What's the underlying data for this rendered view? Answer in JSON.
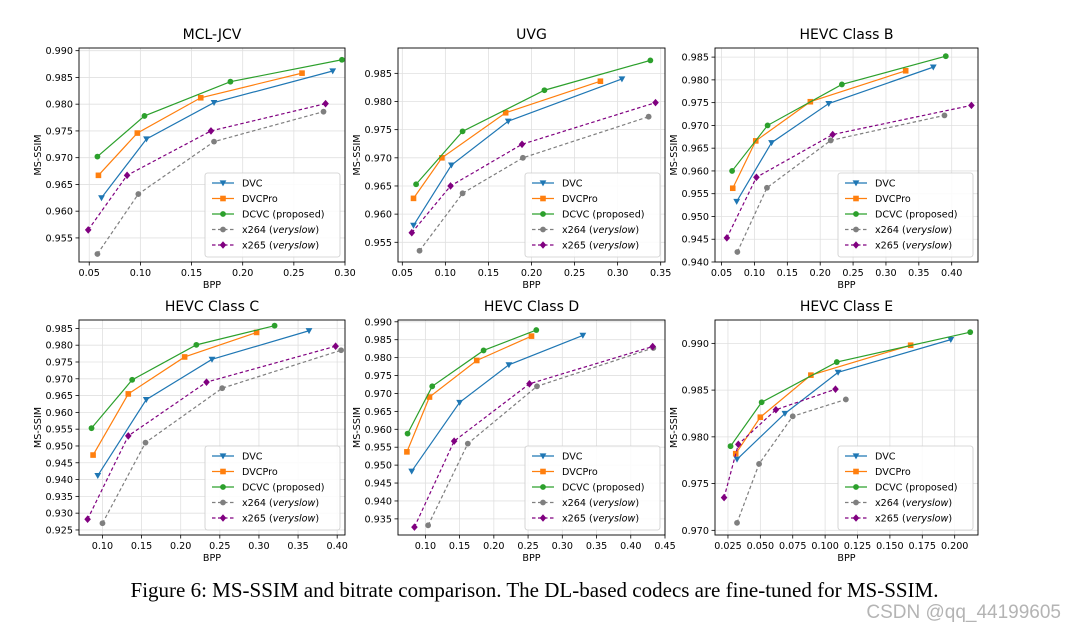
{
  "figure": {
    "caption": "Figure 6: MS-SSIM and bitrate comparison. The DL-based codecs are fine-tuned for MS-SSIM.",
    "watermark": "CSDN @qq_44199605"
  },
  "legend": [
    {
      "key": "dvc",
      "label": "DVC",
      "color": "#1f77b4",
      "marker": "triangle-down",
      "dashed": false
    },
    {
      "key": "dvcpro",
      "label": "DVCPro",
      "color": "#ff7f0e",
      "marker": "square",
      "dashed": false
    },
    {
      "key": "dcvc",
      "label": "DCVC (proposed)",
      "color": "#2ca02c",
      "marker": "circle",
      "dashed": false
    },
    {
      "key": "x264",
      "label": "x264",
      "label_suffix": "veryslow",
      "color": "#7f7f7f",
      "marker": "circle",
      "dashed": true
    },
    {
      "key": "x265",
      "label": "x265",
      "label_suffix": "veryslow",
      "color": "#800080",
      "marker": "diamond",
      "dashed": true
    }
  ],
  "chart_data": [
    {
      "type": "line",
      "title": "MCL-JCV",
      "xlabel": "BPP",
      "ylabel": "MS-SSIM",
      "xlim": [
        0.04,
        0.3
      ],
      "ylim": [
        0.9505,
        0.9905
      ],
      "xticks": [
        0.05,
        0.1,
        0.15,
        0.2,
        0.25,
        0.3
      ],
      "xtick_labels": [
        "0.05",
        "0.10",
        "0.15",
        "0.20",
        "0.25",
        "0.30"
      ],
      "yticks": [
        0.955,
        0.96,
        0.965,
        0.97,
        0.975,
        0.98,
        0.985,
        0.99
      ],
      "ytick_labels": [
        "0.955",
        "0.960",
        "0.965",
        "0.970",
        "0.975",
        "0.980",
        "0.985",
        "0.990"
      ],
      "grid": true,
      "legend_position": "bottom-right",
      "series": [
        {
          "name": "DVC",
          "x": [
            0.062,
            0.106,
            0.172,
            0.288
          ],
          "y": [
            0.9625,
            0.9735,
            0.9803,
            0.9862
          ]
        },
        {
          "name": "DVCPro",
          "x": [
            0.059,
            0.097,
            0.159,
            0.258
          ],
          "y": [
            0.9667,
            0.9746,
            0.9812,
            0.9858
          ]
        },
        {
          "name": "DCVC (proposed)",
          "x": [
            0.058,
            0.104,
            0.188,
            0.297
          ],
          "y": [
            0.9702,
            0.9778,
            0.9842,
            0.9883
          ]
        },
        {
          "name": "x264 (veryslow)",
          "x": [
            0.058,
            0.098,
            0.172,
            0.279
          ],
          "y": [
            0.952,
            0.9632,
            0.973,
            0.9786
          ]
        },
        {
          "name": "x265 (veryslow)",
          "x": [
            0.049,
            0.087,
            0.169,
            0.281
          ],
          "y": [
            0.9565,
            0.9667,
            0.975,
            0.9801
          ]
        }
      ]
    },
    {
      "type": "line",
      "title": "UVG",
      "xlabel": "BPP",
      "ylabel": "MS-SSIM",
      "xlim": [
        0.045,
        0.355
      ],
      "ylim": [
        0.9515,
        0.9895
      ],
      "xticks": [
        0.05,
        0.1,
        0.15,
        0.2,
        0.25,
        0.3,
        0.35
      ],
      "xtick_labels": [
        "0.05",
        "0.10",
        "0.15",
        "0.20",
        "0.25",
        "0.30",
        "0.35"
      ],
      "yticks": [
        0.955,
        0.96,
        0.965,
        0.97,
        0.975,
        0.98,
        0.985
      ],
      "ytick_labels": [
        "0.955",
        "0.960",
        "0.965",
        "0.970",
        "0.975",
        "0.980",
        "0.985"
      ],
      "grid": true,
      "legend_position": "bottom-right",
      "series": [
        {
          "name": "DVC",
          "x": [
            0.063,
            0.107,
            0.173,
            0.305
          ],
          "y": [
            0.958,
            0.9687,
            0.9765,
            0.984
          ]
        },
        {
          "name": "DVCPro",
          "x": [
            0.063,
            0.096,
            0.17,
            0.28
          ],
          "y": [
            0.9628,
            0.97,
            0.978,
            0.9836
          ]
        },
        {
          "name": "DCVC (proposed)",
          "x": [
            0.066,
            0.12,
            0.215,
            0.338
          ],
          "y": [
            0.9653,
            0.9747,
            0.982,
            0.9873
          ]
        },
        {
          "name": "x264 (veryslow)",
          "x": [
            0.07,
            0.12,
            0.19,
            0.336
          ],
          "y": [
            0.9535,
            0.9637,
            0.97,
            0.9773
          ]
        },
        {
          "name": "x265 (veryslow)",
          "x": [
            0.061,
            0.106,
            0.189,
            0.344
          ],
          "y": [
            0.9567,
            0.965,
            0.9724,
            0.9798
          ]
        }
      ]
    },
    {
      "type": "line",
      "title": "HEVC Class B",
      "xlabel": "BPP",
      "ylabel": "MS-SSIM",
      "xlim": [
        0.04,
        0.44
      ],
      "ylim": [
        0.94,
        0.987
      ],
      "xticks": [
        0.05,
        0.1,
        0.15,
        0.2,
        0.25,
        0.3,
        0.35,
        0.4
      ],
      "xtick_labels": [
        "0.05",
        "0.10",
        "0.15",
        "0.20",
        "0.25",
        "0.30",
        "0.35",
        "0.40"
      ],
      "yticks": [
        0.94,
        0.945,
        0.95,
        0.955,
        0.96,
        0.965,
        0.97,
        0.975,
        0.98,
        0.985
      ],
      "ytick_labels": [
        "0.940",
        "0.945",
        "0.950",
        "0.955",
        "0.960",
        "0.965",
        "0.970",
        "0.975",
        "0.980",
        "0.985"
      ],
      "grid": true,
      "legend_position": "bottom-right",
      "series": [
        {
          "name": "DVC",
          "x": [
            0.073,
            0.126,
            0.213,
            0.372
          ],
          "y": [
            0.9533,
            0.9662,
            0.9748,
            0.9828
          ]
        },
        {
          "name": "DVCPro",
          "x": [
            0.067,
            0.102,
            0.185,
            0.33
          ],
          "y": [
            0.9562,
            0.9666,
            0.9752,
            0.982
          ]
        },
        {
          "name": "DCVC (proposed)",
          "x": [
            0.066,
            0.12,
            0.233,
            0.391
          ],
          "y": [
            0.96,
            0.97,
            0.979,
            0.9852
          ]
        },
        {
          "name": "x264 (veryslow)",
          "x": [
            0.074,
            0.119,
            0.216,
            0.389
          ],
          "y": [
            0.9422,
            0.9563,
            0.9667,
            0.9722
          ]
        },
        {
          "name": "x265 (veryslow)",
          "x": [
            0.058,
            0.103,
            0.219,
            0.43
          ],
          "y": [
            0.9453,
            0.9586,
            0.968,
            0.9744
          ]
        }
      ]
    },
    {
      "type": "line",
      "title": "HEVC Class C",
      "xlabel": "BPP",
      "ylabel": "MS-SSIM",
      "xlim": [
        0.07,
        0.41
      ],
      "ylim": [
        0.9235,
        0.9875
      ],
      "xticks": [
        0.1,
        0.15,
        0.2,
        0.25,
        0.3,
        0.35,
        0.4
      ],
      "xtick_labels": [
        "0.10",
        "0.15",
        "0.20",
        "0.25",
        "0.30",
        "0.35",
        "0.40"
      ],
      "yticks": [
        0.925,
        0.93,
        0.935,
        0.94,
        0.945,
        0.95,
        0.955,
        0.96,
        0.965,
        0.97,
        0.975,
        0.98,
        0.985
      ],
      "ytick_labels": [
        "0.925",
        "0.930",
        "0.935",
        "0.940",
        "0.945",
        "0.950",
        "0.955",
        "0.960",
        "0.965",
        "0.970",
        "0.975",
        "0.980",
        "0.985"
      ],
      "grid": true,
      "legend_position": "bottom-right",
      "series": [
        {
          "name": "DVC",
          "x": [
            0.094,
            0.156,
            0.24,
            0.364
          ],
          "y": [
            0.9412,
            0.9638,
            0.9758,
            0.9843
          ]
        },
        {
          "name": "DVCPro",
          "x": [
            0.088,
            0.133,
            0.205,
            0.297
          ],
          "y": [
            0.9473,
            0.9655,
            0.9765,
            0.9838
          ]
        },
        {
          "name": "DCVC (proposed)",
          "x": [
            0.086,
            0.138,
            0.22,
            0.32
          ],
          "y": [
            0.9553,
            0.9697,
            0.9801,
            0.9858
          ]
        },
        {
          "name": "x264 (veryslow)",
          "x": [
            0.1,
            0.155,
            0.253,
            0.405
          ],
          "y": [
            0.927,
            0.951,
            0.9672,
            0.9785
          ]
        },
        {
          "name": "x265 (veryslow)",
          "x": [
            0.081,
            0.133,
            0.233,
            0.398
          ],
          "y": [
            0.9282,
            0.953,
            0.969,
            0.9797
          ]
        }
      ]
    },
    {
      "type": "line",
      "title": "HEVC Class D",
      "xlabel": "BPP",
      "ylabel": "MS-SSIM",
      "xlim": [
        0.06,
        0.45
      ],
      "ylim": [
        0.9305,
        0.9905
      ],
      "xticks": [
        0.1,
        0.15,
        0.2,
        0.25,
        0.3,
        0.35,
        0.4,
        0.45
      ],
      "xtick_labels": [
        "0.10",
        "0.15",
        "0.20",
        "0.25",
        "0.30",
        "0.35",
        "0.40",
        "0.45"
      ],
      "yticks": [
        0.935,
        0.94,
        0.945,
        0.95,
        0.955,
        0.96,
        0.965,
        0.97,
        0.975,
        0.98,
        0.985,
        0.99
      ],
      "ytick_labels": [
        "0.935",
        "0.940",
        "0.945",
        "0.950",
        "0.955",
        "0.960",
        "0.965",
        "0.970",
        "0.975",
        "0.980",
        "0.985",
        "0.990"
      ],
      "grid": true,
      "legend_position": "bottom-right",
      "series": [
        {
          "name": "DVC",
          "x": [
            0.08,
            0.15,
            0.222,
            0.33
          ],
          "y": [
            0.9483,
            0.9675,
            0.978,
            0.9862
          ]
        },
        {
          "name": "DVCPro",
          "x": [
            0.073,
            0.106,
            0.175,
            0.255
          ],
          "y": [
            0.9537,
            0.969,
            0.9792,
            0.986
          ]
        },
        {
          "name": "DCVC (proposed)",
          "x": [
            0.074,
            0.11,
            0.185,
            0.262
          ],
          "y": [
            0.9588,
            0.972,
            0.982,
            0.9877
          ]
        },
        {
          "name": "x264 (veryslow)",
          "x": [
            0.104,
            0.162,
            0.263,
            0.433
          ],
          "y": [
            0.9332,
            0.956,
            0.972,
            0.9827
          ]
        },
        {
          "name": "x265 (veryslow)",
          "x": [
            0.084,
            0.142,
            0.252,
            0.432
          ],
          "y": [
            0.9327,
            0.9567,
            0.9727,
            0.9831
          ]
        }
      ]
    },
    {
      "type": "line",
      "title": "HEVC Class E",
      "xlabel": "BPP",
      "ylabel": "MS-SSIM",
      "xlim": [
        0.015,
        0.218
      ],
      "ylim": [
        0.9695,
        0.9925
      ],
      "xticks": [
        0.025,
        0.05,
        0.075,
        0.1,
        0.125,
        0.15,
        0.175,
        0.2
      ],
      "xtick_labels": [
        "0.025",
        "0.050",
        "0.075",
        "0.100",
        "0.125",
        "0.150",
        "0.175",
        "0.200"
      ],
      "yticks": [
        0.97,
        0.975,
        0.98,
        0.985,
        0.99
      ],
      "ytick_labels": [
        "0.970",
        "0.975",
        "0.980",
        "0.985",
        "0.990"
      ],
      "grid": true,
      "legend_position": "bottom-right",
      "series": [
        {
          "name": "DVC",
          "x": [
            0.032,
            0.069,
            0.11,
            0.197
          ],
          "y": [
            0.9776,
            0.9825,
            0.9869,
            0.9904
          ]
        },
        {
          "name": "DVCPro",
          "x": [
            0.031,
            0.05,
            0.089,
            0.166
          ],
          "y": [
            0.9782,
            0.9821,
            0.9866,
            0.9898
          ]
        },
        {
          "name": "DCVC (proposed)",
          "x": [
            0.027,
            0.051,
            0.109,
            0.212
          ],
          "y": [
            0.979,
            0.9837,
            0.988,
            0.9912
          ]
        },
        {
          "name": "x264 (veryslow)",
          "x": [
            0.032,
            0.049,
            0.075,
            0.116
          ],
          "y": [
            0.9708,
            0.9771,
            0.9822,
            0.984
          ]
        },
        {
          "name": "x265 (veryslow)",
          "x": [
            0.022,
            0.033,
            0.062,
            0.108
          ],
          "y": [
            0.9735,
            0.9792,
            0.9829,
            0.9851
          ]
        }
      ]
    }
  ]
}
